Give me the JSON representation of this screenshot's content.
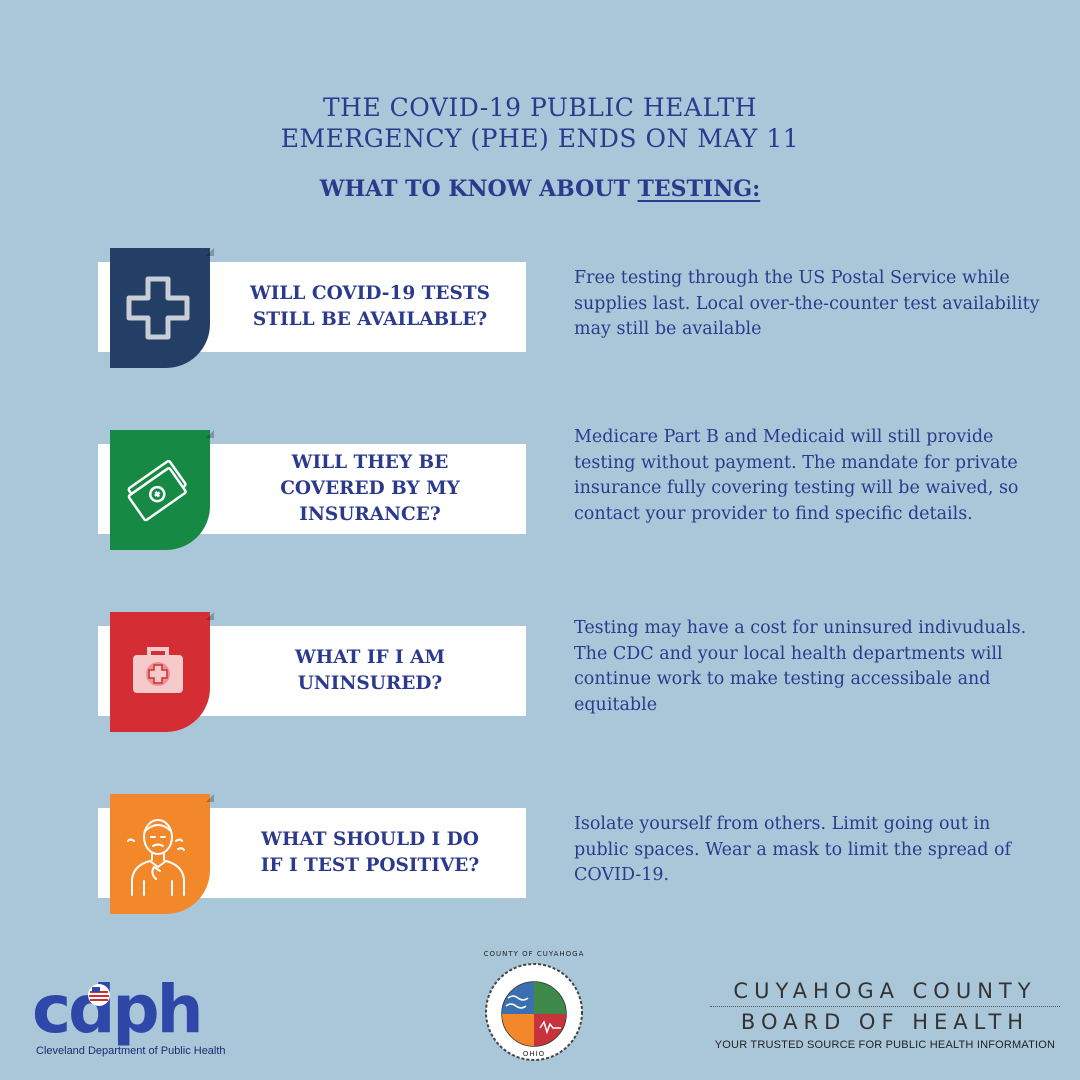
{
  "header": {
    "title_line1": "THE COVID-19 PUBLIC HEALTH",
    "title_line2": "EMERGENCY (PHE) ENDS ON MAY 11",
    "subtitle_prefix": "WHAT TO KNOW ABOUT ",
    "subtitle_emphasis": "TESTING:"
  },
  "items": [
    {
      "question_line1": "WILL COVID-19 TESTS",
      "question_line2": "STILL BE AVAILABLE?",
      "question_line3": "",
      "answer": "Free testing through the US Postal Service while supplies last. Local over-the-counter test availability may still be available",
      "tab_color": "#243f66",
      "icon": "medical-cross-icon"
    },
    {
      "question_line1": "WILL THEY BE",
      "question_line2": "COVERED BY MY",
      "question_line3": "INSURANCE?",
      "answer": "Medicare Part B and Medicaid will still provide testing without payment. The mandate for private insurance fully covering testing will be waived, so contact your provider to find specific details.",
      "tab_color": "#168a44",
      "icon": "money-bills-icon"
    },
    {
      "question_line1": "WHAT IF I AM",
      "question_line2": "UNINSURED?",
      "question_line3": "",
      "answer": "Testing may have a cost for uninsured indivuduals. The CDC and your local health departments will continue work to make testing accessibale and equitable",
      "tab_color": "#d42e34",
      "icon": "first-aid-kit-icon"
    },
    {
      "question_line1": "WHAT SHOULD I DO",
      "question_line2": "IF I TEST POSITIVE?",
      "question_line3": "",
      "answer": "Isolate yourself from others. Limit going out in public spaces. Wear a mask to limit the spread of COVID-19.",
      "tab_color": "#f2882a",
      "icon": "sick-person-icon"
    }
  ],
  "footer": {
    "cdph_logo": "cdph",
    "cdph_name": "Cleveland Department of Public Health",
    "seal_top": "COUNTY OF CUYAHOGA",
    "seal_bottom": "OHIO",
    "board_line1": "CUYAHOGA COUNTY",
    "board_line2": "BOARD OF HEALTH",
    "board_tagline": "YOUR TRUSTED SOURCE FOR PUBLIC HEALTH INFORMATION"
  }
}
